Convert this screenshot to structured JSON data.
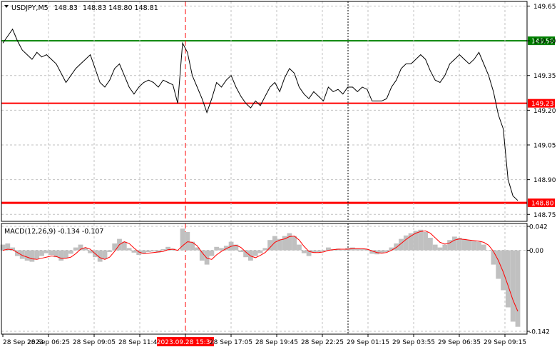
{
  "header": {
    "symbol": "USDJPY,M5",
    "ohlc": "148.83 148.80 148.81",
    "open": "148.83"
  },
  "macd_header": "MACD(12,26,9) -0.134 -0.107",
  "colors": {
    "price_line": "#000000",
    "grid": "#c0c0c0",
    "resistance_green": "#008000",
    "level_red": "#ff0000",
    "macd_hist": "#c0c0c0",
    "signal_line": "#ff0000",
    "highlight_label_bg": "#ff0000"
  },
  "chart_data": [
    {
      "type": "line",
      "title": "USDJPY,M5",
      "y_ticks": [
        "149.65",
        "149.50",
        "149.35",
        "149.20",
        "149.05",
        "148.90",
        "148.75"
      ],
      "ylim": [
        148.72,
        149.67
      ],
      "levels": [
        {
          "value": 149.5,
          "label": "149.50",
          "color": "#008000"
        },
        {
          "value": 149.23,
          "label": "149.23",
          "color": "#ff0000"
        },
        {
          "value": 148.8,
          "label": "148.80",
          "color": "#ff0000"
        }
      ],
      "x_ticks": [
        "28 Sep 2023",
        "28 Sep 06:25",
        "28 Sep 09:05",
        "28 Sep 11:45",
        "2023.09.28 15:30",
        "28 Sep 17:05",
        "28 Sep 19:45",
        "28 Sep 22:25",
        "29 Sep 01:15",
        "29 Sep 03:55",
        "29 Sep 06:35",
        "29 Sep 09:15"
      ],
      "highlight_time": "2023.09.28 15:30",
      "series": [
        {
          "values": [
            149.49,
            149.52,
            149.55,
            149.5,
            149.46,
            149.44,
            149.42,
            149.45,
            149.43,
            149.44,
            149.42,
            149.4,
            149.36,
            149.32,
            149.35,
            149.38,
            149.4,
            149.42,
            149.44,
            149.38,
            149.32,
            149.3,
            149.33,
            149.38,
            149.4,
            149.35,
            149.3,
            149.27,
            149.3,
            149.32,
            149.33,
            149.32,
            149.3,
            149.33,
            149.32,
            149.31,
            149.23,
            149.49,
            149.45,
            149.35,
            149.3,
            149.25,
            149.19,
            149.25,
            149.32,
            149.3,
            149.33,
            149.35,
            149.3,
            149.26,
            149.23,
            149.21,
            149.24,
            149.22,
            149.26,
            149.3,
            149.32,
            149.28,
            149.34,
            149.38,
            149.36,
            149.3,
            149.27,
            149.25,
            149.28,
            149.26,
            149.24,
            149.3,
            149.28,
            149.29,
            149.27,
            149.3,
            149.3,
            149.28,
            149.3,
            149.29,
            149.24,
            149.24,
            149.24,
            149.25,
            149.3,
            149.33,
            149.38,
            149.4,
            149.4,
            149.42,
            149.44,
            149.42,
            149.37,
            149.33,
            149.32,
            149.35,
            149.4,
            149.42,
            149.44,
            149.42,
            149.4,
            149.42,
            149.45,
            149.4,
            149.35,
            149.28,
            149.18,
            149.12,
            148.9,
            148.83,
            148.81
          ]
        }
      ]
    },
    {
      "type": "bar",
      "title": "MACD(12,26,9) -0.134 -0.107",
      "y_ticks": [
        "0.042",
        "0.00",
        "-0.142"
      ],
      "ylim": [
        -0.147,
        0.047
      ],
      "series": [
        {
          "name": "MACD",
          "values": [
            0.01,
            0.012,
            0.005,
            -0.01,
            -0.015,
            -0.018,
            -0.02,
            -0.015,
            -0.01,
            -0.005,
            -0.008,
            -0.012,
            -0.018,
            -0.014,
            -0.006,
            0.005,
            0.01,
            0.004,
            -0.005,
            -0.012,
            -0.02,
            -0.015,
            -0.003,
            0.012,
            0.02,
            0.015,
            0.004,
            -0.004,
            -0.008,
            -0.006,
            -0.003,
            -0.002,
            -0.004,
            0.002,
            0.006,
            0.003,
            0.0,
            0.038,
            0.032,
            0.015,
            0.005,
            -0.018,
            -0.025,
            -0.01,
            0.006,
            0.004,
            0.008,
            0.015,
            0.01,
            -0.003,
            -0.012,
            -0.018,
            -0.01,
            -0.005,
            0.004,
            0.018,
            0.025,
            0.02,
            0.025,
            0.03,
            0.025,
            0.01,
            -0.005,
            -0.01,
            -0.004,
            -0.003,
            -0.002,
            0.005,
            0.002,
            0.003,
            0.001,
            0.004,
            0.005,
            0.003,
            0.002,
            0.002,
            -0.006,
            -0.007,
            -0.005,
            -0.003,
            0.005,
            0.012,
            0.02,
            0.026,
            0.03,
            0.034,
            0.036,
            0.032,
            0.022,
            0.01,
            0.005,
            0.01,
            0.018,
            0.024,
            0.022,
            0.02,
            0.018,
            0.016,
            0.015,
            0.01,
            0.0,
            -0.025,
            -0.05,
            -0.07,
            -0.1,
            -0.125,
            -0.134
          ]
        },
        {
          "name": "Signal",
          "values": [
            0.0,
            0.002,
            0.001,
            -0.004,
            -0.009,
            -0.012,
            -0.015,
            -0.016,
            -0.014,
            -0.012,
            -0.01,
            -0.011,
            -0.014,
            -0.014,
            -0.012,
            -0.006,
            0.002,
            0.005,
            0.002,
            -0.006,
            -0.013,
            -0.016,
            -0.012,
            -0.002,
            0.01,
            0.015,
            0.012,
            0.004,
            -0.003,
            -0.006,
            -0.005,
            -0.004,
            -0.003,
            -0.002,
            0.001,
            0.002,
            0.0,
            0.008,
            0.015,
            0.014,
            0.008,
            -0.004,
            -0.014,
            -0.016,
            -0.008,
            -0.002,
            0.003,
            0.007,
            0.009,
            0.005,
            -0.003,
            -0.01,
            -0.013,
            -0.009,
            -0.004,
            0.005,
            0.014,
            0.018,
            0.02,
            0.024,
            0.025,
            0.018,
            0.007,
            -0.002,
            -0.004,
            -0.004,
            -0.003,
            0.0,
            0.001,
            0.002,
            0.002,
            0.002,
            0.003,
            0.003,
            0.003,
            0.002,
            -0.001,
            -0.004,
            -0.005,
            -0.004,
            0.0,
            0.005,
            0.012,
            0.019,
            0.025,
            0.03,
            0.033,
            0.034,
            0.03,
            0.022,
            0.014,
            0.011,
            0.013,
            0.018,
            0.02,
            0.019,
            0.018,
            0.017,
            0.016,
            0.014,
            0.009,
            -0.002,
            -0.018,
            -0.038,
            -0.062,
            -0.087,
            -0.107
          ]
        }
      ]
    }
  ]
}
